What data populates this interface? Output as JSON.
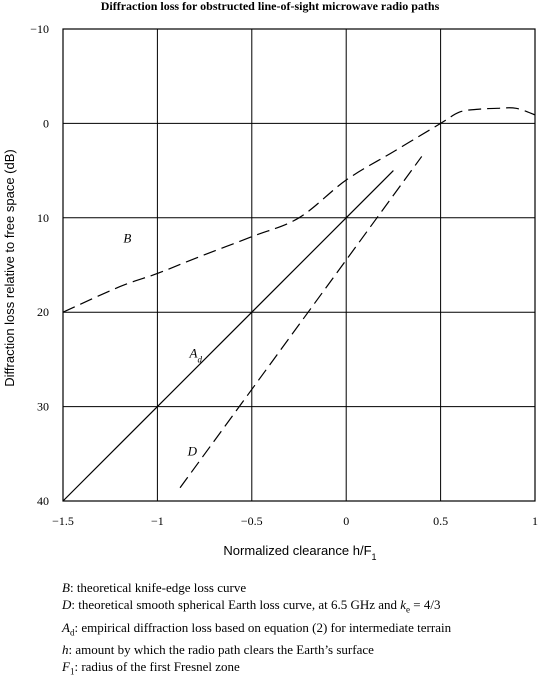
{
  "chart_data": {
    "type": "line",
    "title": "Diffraction loss for obstructed line-of-sight microwave radio paths",
    "xlabel": "Normalized clearance h/F",
    "xlabel_sub": "1",
    "ylabel": "Diffraction loss relative to free space (dB)",
    "xlim": [
      -1.5,
      1
    ],
    "ylim": [
      -10,
      40
    ],
    "y_inverted": true,
    "grid": true,
    "x_ticks": [
      "−1.5",
      "−1",
      "−0.5",
      "0",
      "0.5",
      "1"
    ],
    "x_tick_values": [
      -1.5,
      -1,
      -0.5,
      0,
      0.5,
      1
    ],
    "y_ticks": [
      "−10",
      "0",
      "10",
      "20",
      "30",
      "40"
    ],
    "y_tick_values": [
      -10,
      0,
      10,
      20,
      30,
      40
    ],
    "series": [
      {
        "name": "B",
        "style": "dashed",
        "x": [
          -1.5,
          -1.2,
          -1.0,
          -0.8,
          -0.5,
          -0.25,
          0.0,
          0.25,
          0.5,
          0.6,
          0.7,
          0.8,
          0.9,
          1.0
        ],
        "y": [
          20.0,
          17.3,
          15.9,
          14.3,
          12.0,
          10.0,
          6.0,
          3.0,
          0.0,
          -1.2,
          -1.5,
          -1.6,
          -1.6,
          -0.9
        ]
      },
      {
        "name": "A",
        "name_sub": "d",
        "style": "solid",
        "x": [
          -1.5,
          0.25
        ],
        "y": [
          40.0,
          5.0
        ]
      },
      {
        "name": "D",
        "style": "dashed",
        "x": [
          -0.88,
          0.4
        ],
        "y": [
          38.6,
          3.5
        ]
      }
    ],
    "curve_labels": [
      {
        "series": "B",
        "text": "B",
        "x": -1.18,
        "y": 12.6
      },
      {
        "series": "A",
        "text": "A",
        "sub": "d",
        "x": -0.83,
        "y": 24.8
      },
      {
        "series": "D",
        "text": "D",
        "x": -0.84,
        "y": 35.2
      }
    ]
  },
  "legend": [
    {
      "symbol": "B",
      "text": ":  theoretical knife-edge loss curve"
    },
    {
      "symbol": "D",
      "text": ":  theoretical smooth spherical Earth loss curve, at 6.5 GHz and ",
      "extra_symbol": "k",
      "extra_sub": "e",
      "extra_text": " = 4/3"
    },
    {
      "symbol": "A",
      "sub": "d",
      "text": ":  empirical diffraction loss based on equation (2) for intermediate terrain"
    },
    {
      "symbol": "h",
      "text": ":  amount by which the radio path clears the Earth’s surface"
    },
    {
      "symbol": "F",
      "sub": "1",
      "text": ":  radius of the first Fresnel zone"
    }
  ]
}
